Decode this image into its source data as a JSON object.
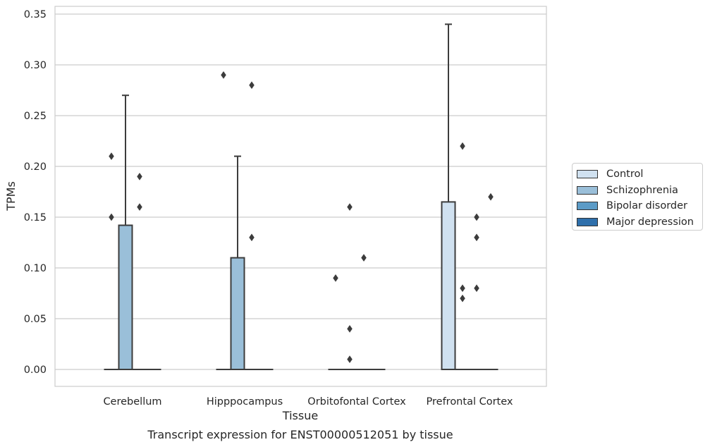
{
  "chart_data": {
    "type": "box",
    "title": "Transcript expression for ENST00000512051 by tissue",
    "xlabel": "Tissue",
    "ylabel": "TPMs",
    "ylim": [
      -0.017,
      0.357
    ],
    "yticks": [
      "0.00",
      "0.05",
      "0.10",
      "0.15",
      "0.20",
      "0.25",
      "0.30",
      "0.35"
    ],
    "grid": true,
    "legend_position": "right",
    "categories": [
      "Cerebellum",
      "Hipppocampus",
      "Orbitofontal Cortex",
      "Prefrontal Cortex"
    ],
    "series": [
      {
        "name": "Control",
        "color": "#d0e1f0",
        "boxes": [
          {
            "category": "Cerebellum",
            "q1": 0,
            "median": 0,
            "q3": 0,
            "whisker_low": 0,
            "whisker_high": 0,
            "outliers": [
              0.15,
              0.21
            ]
          },
          {
            "category": "Hipppocampus",
            "q1": 0,
            "median": 0,
            "q3": 0,
            "whisker_low": 0,
            "whisker_high": 0,
            "outliers": [
              0.29
            ]
          },
          {
            "category": "Orbitofontal Cortex",
            "q1": 0,
            "median": 0,
            "q3": 0,
            "whisker_low": 0,
            "whisker_high": 0,
            "outliers": [
              0.09
            ]
          },
          {
            "category": "Prefrontal Cortex",
            "q1": 0,
            "median": 0,
            "q3": 0.165,
            "whisker_low": 0,
            "whisker_high": 0.34,
            "outliers": []
          }
        ]
      },
      {
        "name": "Schizophrenia",
        "color": "#9abfd9",
        "boxes": [
          {
            "category": "Cerebellum",
            "q1": 0,
            "median": 0,
            "q3": 0.142,
            "whisker_low": 0,
            "whisker_high": 0.27,
            "outliers": []
          },
          {
            "category": "Hipppocampus",
            "q1": 0,
            "median": 0,
            "q3": 0.11,
            "whisker_low": 0,
            "whisker_high": 0.21,
            "outliers": []
          },
          {
            "category": "Orbitofontal Cortex",
            "q1": 0,
            "median": 0,
            "q3": 0,
            "whisker_low": 0,
            "whisker_high": 0,
            "outliers": [
              0.01,
              0.04,
              0.16
            ]
          },
          {
            "category": "Prefrontal Cortex",
            "q1": 0,
            "median": 0,
            "q3": 0,
            "whisker_low": 0,
            "whisker_high": 0,
            "outliers": [
              0.07,
              0.08,
              0.22
            ]
          }
        ]
      },
      {
        "name": "Bipolar disorder",
        "color": "#5b9bc7",
        "boxes": [
          {
            "category": "Cerebellum",
            "q1": 0,
            "median": 0,
            "q3": 0,
            "whisker_low": 0,
            "whisker_high": 0,
            "outliers": [
              0.16,
              0.19
            ]
          },
          {
            "category": "Hipppocampus",
            "q1": 0,
            "median": 0,
            "q3": 0,
            "whisker_low": 0,
            "whisker_high": 0,
            "outliers": [
              0.13,
              0.28
            ]
          },
          {
            "category": "Orbitofontal Cortex",
            "q1": 0,
            "median": 0,
            "q3": 0,
            "whisker_low": 0,
            "whisker_high": 0,
            "outliers": [
              0.11
            ]
          },
          {
            "category": "Prefrontal Cortex",
            "q1": 0,
            "median": 0,
            "q3": 0,
            "whisker_low": 0,
            "whisker_high": 0,
            "outliers": [
              0.08,
              0.13,
              0.15
            ]
          }
        ]
      },
      {
        "name": "Major depression",
        "color": "#2e6fab",
        "boxes": [
          {
            "category": "Cerebellum",
            "q1": 0,
            "median": 0,
            "q3": 0,
            "whisker_low": 0,
            "whisker_high": 0,
            "outliers": []
          },
          {
            "category": "Hipppocampus",
            "q1": 0,
            "median": 0,
            "q3": 0,
            "whisker_low": 0,
            "whisker_high": 0,
            "outliers": []
          },
          {
            "category": "Orbitofontal Cortex",
            "q1": 0,
            "median": 0,
            "q3": 0,
            "whisker_low": 0,
            "whisker_high": 0,
            "outliers": []
          },
          {
            "category": "Prefrontal Cortex",
            "q1": 0,
            "median": 0,
            "q3": 0,
            "whisker_low": 0,
            "whisker_high": 0,
            "outliers": [
              0.17
            ]
          }
        ]
      }
    ]
  }
}
